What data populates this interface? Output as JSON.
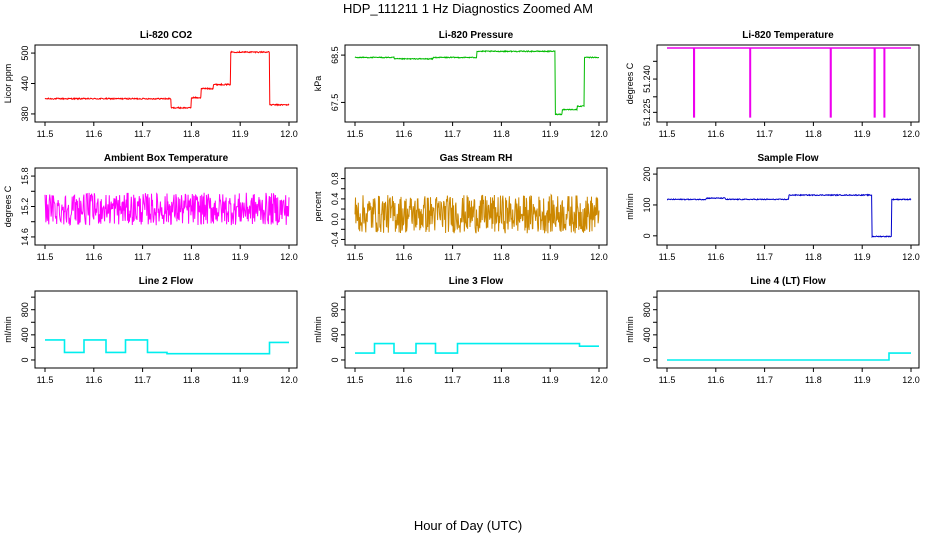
{
  "figure": {
    "title": "HDP_111211  1 Hz Diagnostics Zoomed AM",
    "xlabel": "Hour of Day (UTC)"
  },
  "chart_data": [
    {
      "type": "line",
      "title": "Li-820 CO2",
      "ylabel": "Licor ppm",
      "color": "#ff0000",
      "xlim": [
        11.5,
        12.0
      ],
      "ylim": [
        370,
        510
      ],
      "xticks": [
        "11.5",
        "11.6",
        "11.7",
        "11.8",
        "11.9",
        "12.0"
      ],
      "yticks": [
        {
          "v": 380,
          "t": "380"
        },
        {
          "v": 440,
          "t": "440"
        },
        {
          "v": 500,
          "t": "500"
        }
      ],
      "yextra": [],
      "series": [
        {
          "x": [
            11.5,
            11.758,
            11.758,
            11.8,
            11.8,
            11.82,
            11.82,
            11.845,
            11.845,
            11.88,
            11.88,
            11.96,
            11.96,
            12.0
          ],
          "y": [
            410,
            410,
            392,
            392,
            412,
            412,
            430,
            430,
            438,
            438,
            502,
            502,
            398,
            398
          ]
        }
      ],
      "noise": 1.2,
      "grid": false
    },
    {
      "type": "line",
      "title": "Li-820 Pressure",
      "ylabel": "kPa",
      "color": "#00bb00",
      "xlim": [
        11.5,
        12.0
      ],
      "ylim": [
        67.15,
        68.65
      ],
      "xticks": [
        "11.5",
        "11.6",
        "11.7",
        "11.8",
        "11.9",
        "12.0"
      ],
      "yticks": [
        {
          "v": 67.5,
          "t": "67.5"
        },
        {
          "v": 68.5,
          "t": "68.5"
        }
      ],
      "yextra": [],
      "series": [
        {
          "x": [
            11.5,
            11.58,
            11.58,
            11.66,
            11.66,
            11.75,
            11.75,
            11.91,
            11.91,
            11.925,
            11.925,
            11.955,
            11.955,
            11.97,
            11.97,
            12.0
          ],
          "y": [
            68.45,
            68.45,
            68.42,
            68.42,
            68.45,
            68.45,
            68.58,
            68.58,
            67.25,
            67.25,
            67.35,
            67.35,
            67.42,
            67.42,
            68.45,
            68.45
          ]
        }
      ],
      "noise": 0.01,
      "grid": false
    },
    {
      "type": "line",
      "title": "Li-820 Temperature",
      "ylabel": "degrees C",
      "color": "#ee00ee",
      "xlim": [
        11.5,
        12.0
      ],
      "ylim": [
        51.222,
        51.254
      ],
      "xticks": [
        "11.5",
        "11.6",
        "11.7",
        "11.8",
        "11.9",
        "12.0"
      ],
      "yticks": [
        {
          "v": 51.225,
          "t": "51.225"
        },
        {
          "v": 51.24,
          "t": "51.240"
        }
      ],
      "yextra": [
        {
          "v": 51.232,
          "t": "51.232"
        },
        {
          "v": 51.248,
          "t": "51.248"
        }
      ],
      "series": [
        {
          "x": [
            11.5,
            11.555,
            11.555,
            11.556,
            11.556,
            11.67,
            11.67,
            11.671,
            11.671,
            11.835,
            11.835,
            11.836,
            11.836,
            11.925,
            11.925,
            11.926,
            11.926,
            11.945,
            11.945,
            11.946,
            11.946,
            12.0
          ],
          "y": [
            51.254,
            51.254,
            51.223,
            51.223,
            51.254,
            51.254,
            51.223,
            51.223,
            51.254,
            51.254,
            51.223,
            51.223,
            51.254,
            51.254,
            51.223,
            51.223,
            51.254,
            51.254,
            51.223,
            51.223,
            51.254,
            51.254
          ]
        }
      ],
      "noise": 0,
      "grid": false
    },
    {
      "type": "line",
      "title": "Ambient Box Temperature",
      "ylabel": "degrees C",
      "color": "#ff00ff",
      "xlim": [
        11.5,
        12.0
      ],
      "ylim": [
        14.5,
        15.9
      ],
      "xticks": [
        "11.5",
        "11.6",
        "11.7",
        "11.8",
        "11.9",
        "12.0"
      ],
      "yticks": [
        {
          "v": 14.6,
          "t": "14.6"
        },
        {
          "v": 15.2,
          "t": "15.2"
        },
        {
          "v": 15.8,
          "t": "15.8"
        }
      ],
      "yextra": [
        {
          "v": 14.9,
          "t": "14.9"
        },
        {
          "v": 15.5,
          "t": "15.5"
        }
      ],
      "series": [
        {
          "x": [
            11.5,
            12.0
          ],
          "y": [
            15.15,
            15.15
          ]
        }
      ],
      "noise": 0.32,
      "grid": false
    },
    {
      "type": "line",
      "title": "Gas Stream RH",
      "ylabel": "percent",
      "color": "#cc8800",
      "xlim": [
        11.5,
        12.0
      ],
      "ylim": [
        -0.45,
        0.95
      ],
      "xticks": [
        "11.5",
        "11.6",
        "11.7",
        "11.8",
        "11.9",
        "12.0"
      ],
      "yticks": [
        {
          "v": -0.4,
          "t": "-0.4"
        },
        {
          "v": 0.0,
          "t": "0.0"
        },
        {
          "v": 0.4,
          "t": "0.4"
        },
        {
          "v": 0.8,
          "t": "0.8"
        }
      ],
      "yextra": [
        {
          "v": -0.2,
          "t": "-0.2"
        },
        {
          "v": 0.2,
          "t": "0.2"
        },
        {
          "v": 0.6,
          "t": "0.6"
        }
      ],
      "series": [
        {
          "x": [
            11.5,
            12.0
          ],
          "y": [
            0.1,
            0.1
          ]
        }
      ],
      "noise": 0.38,
      "grid": false
    },
    {
      "type": "line",
      "title": "Sample Flow",
      "ylabel": "ml/min",
      "color": "#0000cc",
      "xlim": [
        11.5,
        12.0
      ],
      "ylim": [
        -20,
        210
      ],
      "xticks": [
        "11.5",
        "11.6",
        "11.7",
        "11.8",
        "11.9",
        "12.0"
      ],
      "yticks": [
        {
          "v": 0,
          "t": "0"
        },
        {
          "v": 100,
          "t": "100"
        },
        {
          "v": 200,
          "t": "200"
        }
      ],
      "yextra": [],
      "series": [
        {
          "x": [
            11.5,
            11.58,
            11.58,
            11.62,
            11.62,
            11.75,
            11.75,
            11.92,
            11.92,
            11.96,
            11.96,
            12.0
          ],
          "y": [
            118,
            118,
            122,
            122,
            118,
            118,
            132,
            132,
            -2,
            -2,
            118,
            118
          ]
        }
      ],
      "noise": 1.5,
      "grid": false
    },
    {
      "type": "line",
      "title": "Line 2 Flow",
      "ylabel": "ml/min",
      "color": "#00eeee",
      "xlim": [
        11.5,
        12.0
      ],
      "ylim": [
        -80,
        1050
      ],
      "xticks": [
        "11.5",
        "11.6",
        "11.7",
        "11.8",
        "11.9",
        "12.0"
      ],
      "yticks": [
        {
          "v": 0,
          "t": "0"
        },
        {
          "v": 400,
          "t": "400"
        },
        {
          "v": 800,
          "t": "800"
        }
      ],
      "yextra": [
        {
          "v": 200,
          "t": "200"
        },
        {
          "v": 600,
          "t": "600"
        },
        {
          "v": 1000,
          "t": "1000"
        }
      ],
      "series": [
        {
          "x": [
            11.5,
            11.54,
            11.54,
            11.58,
            11.58,
            11.625,
            11.625,
            11.665,
            11.665,
            11.71,
            11.71,
            11.75,
            11.75,
            11.96,
            11.96,
            12.0
          ],
          "y": [
            320,
            320,
            120,
            120,
            320,
            320,
            120,
            120,
            320,
            320,
            120,
            120,
            100,
            100,
            280,
            280
          ]
        }
      ],
      "noise": 0,
      "grid": false
    },
    {
      "type": "line",
      "title": "Line 3 Flow",
      "ylabel": "ml/min",
      "color": "#00eeee",
      "xlim": [
        11.5,
        12.0
      ],
      "ylim": [
        -80,
        1050
      ],
      "xticks": [
        "11.5",
        "11.6",
        "11.7",
        "11.8",
        "11.9",
        "12.0"
      ],
      "yticks": [
        {
          "v": 0,
          "t": "0"
        },
        {
          "v": 400,
          "t": "400"
        },
        {
          "v": 800,
          "t": "800"
        }
      ],
      "yextra": [
        {
          "v": 200,
          "t": "200"
        },
        {
          "v": 600,
          "t": "600"
        },
        {
          "v": 1000,
          "t": "1000"
        }
      ],
      "series": [
        {
          "x": [
            11.5,
            11.54,
            11.54,
            11.58,
            11.58,
            11.625,
            11.625,
            11.665,
            11.665,
            11.71,
            11.71,
            11.96,
            11.96,
            12.0
          ],
          "y": [
            110,
            110,
            260,
            260,
            110,
            110,
            260,
            260,
            110,
            110,
            260,
            260,
            220,
            220
          ]
        }
      ],
      "noise": 0,
      "grid": false
    },
    {
      "type": "line",
      "title": "Line 4 (LT) Flow",
      "ylabel": "ml/min",
      "color": "#00eeee",
      "xlim": [
        11.5,
        12.0
      ],
      "ylim": [
        -80,
        1050
      ],
      "xticks": [
        "11.5",
        "11.6",
        "11.7",
        "11.8",
        "11.9",
        "12.0"
      ],
      "yticks": [
        {
          "v": 0,
          "t": "0"
        },
        {
          "v": 400,
          "t": "400"
        },
        {
          "v": 800,
          "t": "800"
        }
      ],
      "yextra": [
        {
          "v": 200,
          "t": "200"
        },
        {
          "v": 600,
          "t": "600"
        },
        {
          "v": 1000,
          "t": "1000"
        }
      ],
      "series": [
        {
          "x": [
            11.5,
            11.955,
            11.955,
            12.0
          ],
          "y": [
            0,
            0,
            110,
            110
          ]
        }
      ],
      "noise": 0,
      "grid": false
    }
  ]
}
